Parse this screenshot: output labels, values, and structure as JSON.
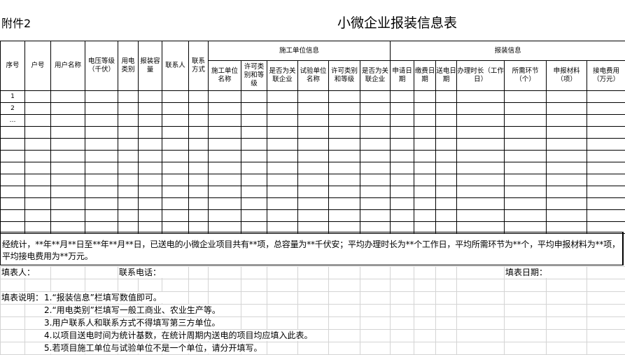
{
  "attachment_label": "附件2",
  "title": "小微企业报装信息表",
  "headers": {
    "seq": "序号",
    "account": "户号",
    "user_name": "用户名称",
    "voltage": "电压等级（千伏）",
    "usage_type": "用电类别",
    "capacity": "报装容量",
    "contact": "联系人",
    "contact_method": "联系方式",
    "construction_group": "施工单位信息",
    "application_group": "报装信息",
    "construction_name": "施工单位名称",
    "license1": "许可类别和等级",
    "related1": "是否为关联企业",
    "test_name": "试验单位名称",
    "license2": "许可类别和等级",
    "related2": "是否为关联企业",
    "apply_date": "申请日期",
    "pay_date": "缴费日期",
    "power_date": "送电日期",
    "duration": "办理时长（工作日）",
    "steps": "所需环节（个）",
    "materials": "申报材料（项）",
    "fee": "接电费用（万元）"
  },
  "rows": [
    "1",
    "2",
    "…",
    "",
    "",
    "",
    "",
    "",
    "",
    "",
    "",
    ""
  ],
  "summary": "经统计，**年**月**日至**年**月**日，已送电的小微企业项目共有**项，总容量为**千伏安；平均办理时长为**个工作日，平均所需环节为**个，平均申报材料为**项，平均接电费用为**万元。",
  "footer": {
    "filler": "填表人：",
    "phone": "联系电话：",
    "date": "填表日期："
  },
  "notes": {
    "label": "填表说明：",
    "items": [
      "1.“报装信息”栏填写数值即可。",
      "2.“用电类别”栏填写一般工商业、农业生产等。",
      "3.用户联系人和联系方式不得填写第三方单位。",
      "4.以项目送电时间为统计基数，在统计周期内送电的项目均应填入此表。",
      "5.若项目施工单位与试验单位不是一个单位，请分开填写。"
    ]
  }
}
